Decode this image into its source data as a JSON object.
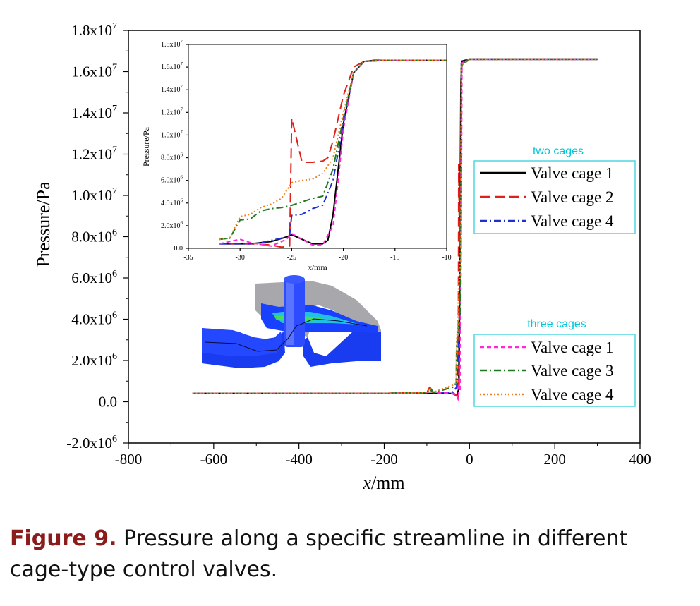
{
  "chart_data": [
    {
      "type": "line",
      "title": "",
      "xlabel": "x/mm",
      "ylabel": "Pressure/Pa",
      "xlim": [
        -800,
        400
      ],
      "ylim": [
        -2000000,
        18000000
      ],
      "x_ticks": [
        -800,
        -600,
        -400,
        -200,
        0,
        200,
        400
      ],
      "x_tick_labels": [
        "-800",
        "-600",
        "-400",
        "-200",
        "0",
        "200",
        "400"
      ],
      "y_ticks": [
        -2000000,
        0,
        2000000,
        4000000,
        6000000,
        8000000,
        10000000,
        12000000,
        14000000,
        16000000,
        18000000
      ],
      "y_tick_labels": [
        {
          "base": "-2.0x10",
          "exp": "6"
        },
        {
          "base": "0.0",
          "exp": ""
        },
        {
          "base": "2.0x10",
          "exp": "6"
        },
        {
          "base": "4.0x10",
          "exp": "6"
        },
        {
          "base": "6.0x10",
          "exp": "6"
        },
        {
          "base": "8.0x10",
          "exp": "6"
        },
        {
          "base": "1.0x10",
          "exp": "7"
        },
        {
          "base": "1.2x10",
          "exp": "7"
        },
        {
          "base": "1.4x10",
          "exp": "7"
        },
        {
          "base": "1.6x10",
          "exp": "7"
        },
        {
          "base": "1.8x10",
          "exp": "7"
        }
      ],
      "grid": false,
      "legend_groups": [
        {
          "title": "two cages",
          "placement": "right",
          "entries": [
            "Valve cage 1",
            "Valve cage 2",
            "Valve cage 4"
          ]
        },
        {
          "title": "three cages",
          "placement": "bottom-right",
          "entries": [
            "Valve cage 1",
            "Valve cage 3",
            "Valve cage 4"
          ]
        }
      ],
      "series": [
        {
          "name": "Valve cage 1",
          "group": "two cages",
          "color": "#000000",
          "dash": "solid",
          "x": [
            -650,
            -400,
            -200,
            -100,
            -95,
            -85,
            -40,
            -30,
            -25,
            -22,
            -20,
            -18,
            0,
            300
          ],
          "y": [
            400000,
            400000,
            400000,
            400000,
            400000,
            400000,
            400000,
            300000,
            600000,
            8000000,
            15500000,
            16500000,
            16600000,
            16600000
          ]
        },
        {
          "name": "Valve cage 2",
          "group": "two cages",
          "color": "#e0201a",
          "dash": "long-dash",
          "x": [
            -650,
            -400,
            -200,
            -100,
            -93,
            -85,
            -40,
            -30,
            -26,
            -25,
            -23,
            -21,
            -19,
            0,
            300
          ],
          "y": [
            400000,
            400000,
            400000,
            450000,
            700000,
            450000,
            450000,
            300000,
            200000,
            11500000,
            7600000,
            8000000,
            16400000,
            16600000,
            16600000
          ]
        },
        {
          "name": "Valve cage 4",
          "group": "two cages",
          "color": "#1f2fd6",
          "dash": "dash-dot",
          "x": [
            -650,
            -400,
            -200,
            -100,
            -93,
            -85,
            -40,
            -30,
            -25,
            -22,
            -20,
            -19,
            0,
            300
          ],
          "y": [
            400000,
            400000,
            400000,
            450000,
            650000,
            450000,
            450000,
            700000,
            2900000,
            3800000,
            8000000,
            16400000,
            16600000,
            16600000
          ]
        },
        {
          "name": "Valve cage 1",
          "group": "three cages",
          "color": "#ff2ad4",
          "dash": "short-dash",
          "x": [
            -650,
            -400,
            -200,
            -100,
            -93,
            -85,
            -40,
            -30,
            -26,
            -24,
            -22,
            -20,
            -18,
            0,
            300
          ],
          "y": [
            400000,
            400000,
            400000,
            450000,
            600000,
            450000,
            400000,
            300000,
            100000,
            1200000,
            500000,
            7000000,
            16400000,
            16600000,
            16600000
          ]
        },
        {
          "name": "Valve cage 3",
          "group": "three cages",
          "color": "#1e7a1e",
          "dash": "dash-dot",
          "x": [
            -650,
            -400,
            -200,
            -100,
            -93,
            -85,
            -40,
            -31,
            -30,
            -27,
            -25,
            -22,
            -20,
            -19,
            0,
            300
          ],
          "y": [
            400000,
            400000,
            400000,
            450000,
            650000,
            450000,
            700000,
            900000,
            2600000,
            3400000,
            3800000,
            4500000,
            8000000,
            16300000,
            16600000,
            16600000
          ]
        },
        {
          "name": "Valve cage 4",
          "group": "three cages",
          "color": "#f08020",
          "dash": "dotted",
          "x": [
            -650,
            -400,
            -200,
            -100,
            -93,
            -85,
            -40,
            -31,
            -30,
            -27,
            -25,
            -23,
            -22,
            -20,
            -19,
            0,
            300
          ],
          "y": [
            400000,
            400000,
            400000,
            450000,
            650000,
            450000,
            800000,
            900000,
            2900000,
            3800000,
            5800000,
            6000000,
            6500000,
            8000000,
            16300000,
            16600000,
            16600000
          ]
        }
      ]
    },
    {
      "type": "line",
      "title": "",
      "xlabel": "x/mm",
      "ylabel": "Pressure/Pa",
      "xlim": [
        -35,
        -10
      ],
      "ylim": [
        0,
        18000000
      ],
      "x_ticks": [
        -35,
        -30,
        -25,
        -20,
        -15,
        -10
      ],
      "x_tick_labels": [
        "-35",
        "-30",
        "-25",
        "-20",
        "-15",
        "-10"
      ],
      "y_ticks": [
        0,
        2000000,
        4000000,
        6000000,
        8000000,
        10000000,
        12000000,
        14000000,
        16000000,
        18000000
      ],
      "y_tick_labels": [
        {
          "base": "0.0",
          "exp": ""
        },
        {
          "base": "2.0x10",
          "exp": "6"
        },
        {
          "base": "4.0x10",
          "exp": "6"
        },
        {
          "base": "6.0x10",
          "exp": "6"
        },
        {
          "base": "8.0x10",
          "exp": "6"
        },
        {
          "base": "1.0x10",
          "exp": "7"
        },
        {
          "base": "1.2x10",
          "exp": "7"
        },
        {
          "base": "1.4x10",
          "exp": "7"
        },
        {
          "base": "1.6x10",
          "exp": "7"
        },
        {
          "base": "1.8x10",
          "exp": "7"
        }
      ],
      "grid": false,
      "series": [
        {
          "name": "Valve cage 1",
          "group": "two cages",
          "color": "#000000",
          "dash": "solid",
          "x": [
            -32,
            -29,
            -27,
            -25.5,
            -25,
            -24,
            -23,
            -22,
            -21.5,
            -21,
            -20.5,
            -20,
            -19,
            -18,
            -17,
            -16,
            -10
          ],
          "y": [
            400000,
            400000,
            600000,
            1000000,
            1200000,
            800000,
            400000,
            400000,
            700000,
            3000000,
            7000000,
            11000000,
            15500000,
            16500000,
            16600000,
            16600000,
            16600000
          ]
        },
        {
          "name": "Valve cage 2",
          "group": "two cages",
          "color": "#e0201a",
          "dash": "long-dash",
          "x": [
            -31,
            -29,
            -27,
            -26,
            -25.2,
            -25,
            -24,
            -23,
            -22,
            -21.5,
            -21,
            -20,
            -19,
            -18,
            -16,
            -10
          ],
          "y": [
            400000,
            400000,
            300000,
            100000,
            200000,
            11500000,
            7600000,
            7600000,
            7700000,
            8000000,
            9500000,
            13500000,
            16000000,
            16500000,
            16600000,
            16600000
          ]
        },
        {
          "name": "Valve cage 4",
          "group": "two cages",
          "color": "#1f2fd6",
          "dash": "dash-dot",
          "x": [
            -32,
            -29,
            -28,
            -27,
            -26,
            -25.2,
            -25,
            -24,
            -23,
            -22,
            -21,
            -20,
            -19,
            -18,
            -16,
            -10
          ],
          "y": [
            400000,
            400000,
            500000,
            700000,
            900000,
            1200000,
            2900000,
            3000000,
            3500000,
            3800000,
            6000000,
            11000000,
            15500000,
            16500000,
            16600000,
            16600000
          ]
        },
        {
          "name": "Valve cage 1",
          "group": "three cages",
          "color": "#ff2ad4",
          "dash": "short-dash",
          "x": [
            -32,
            -30,
            -29,
            -27,
            -25.5,
            -25,
            -24,
            -23,
            -22,
            -21,
            -20.5,
            -20,
            -19,
            -18,
            -16,
            -10
          ],
          "y": [
            400000,
            800000,
            500000,
            200000,
            800000,
            1300000,
            800000,
            300000,
            300000,
            2000000,
            6000000,
            10500000,
            15500000,
            16500000,
            16600000,
            16600000
          ]
        },
        {
          "name": "Valve cage 3",
          "group": "three cages",
          "color": "#1e7a1e",
          "dash": "dash-dot",
          "x": [
            -32,
            -31,
            -30,
            -29,
            -28,
            -27,
            -26,
            -25,
            -24,
            -23,
            -22,
            -21,
            -20,
            -19,
            -18,
            -16,
            -10
          ],
          "y": [
            800000,
            900000,
            2500000,
            2600000,
            3300000,
            3500000,
            3600000,
            3800000,
            4100000,
            4400000,
            4600000,
            7000000,
            11500000,
            15500000,
            16500000,
            16600000,
            16600000
          ]
        },
        {
          "name": "Valve cage 4",
          "group": "three cages",
          "color": "#f08020",
          "dash": "dotted",
          "x": [
            -32,
            -31,
            -30,
            -29,
            -28,
            -27,
            -26,
            -25,
            -24,
            -23,
            -22,
            -21,
            -20,
            -19,
            -18,
            -16,
            -10
          ],
          "y": [
            800000,
            900000,
            2800000,
            3000000,
            3600000,
            3900000,
            4400000,
            5800000,
            6000000,
            6100000,
            6600000,
            8000000,
            12000000,
            15500000,
            16500000,
            16600000,
            16600000
          ]
        }
      ]
    }
  ],
  "legend": {
    "two_cages_title": "two cages",
    "three_cages_title": "three cages",
    "two_cages_entries": [
      "Valve cage 1",
      "Valve cage 2",
      "Valve cage 4"
    ],
    "three_cages_entries": [
      "Valve cage 1",
      "Valve cage 3",
      "Valve cage 4"
    ]
  },
  "caption": {
    "label": "Figure 9.",
    "text": "Pressure along a specific streamline in different cage-type control valves."
  }
}
